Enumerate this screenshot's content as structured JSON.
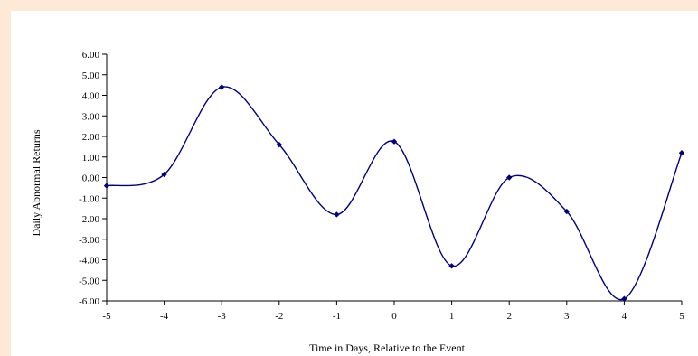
{
  "chart_data": {
    "type": "line",
    "title": "",
    "xlabel": "Time in Days, Relative to the Event",
    "ylabel": "Daily Abnormal Returns",
    "x": [
      -5,
      -4,
      -3,
      -2,
      -1,
      0,
      1,
      2,
      3,
      4,
      5
    ],
    "x_tick_labels": [
      "-5",
      "-4",
      "-3",
      "-2",
      "-1",
      "0",
      "1",
      "2",
      "3",
      "4",
      "5"
    ],
    "y_tick_labels": [
      "6.00",
      "5.00",
      "4.00",
      "3.00",
      "2.00",
      "1.00",
      "0.00",
      "-1.00",
      "-2.00",
      "-3.00",
      "-4.00",
      "-5.00",
      "-6.00"
    ],
    "xlim": [
      -5,
      5
    ],
    "ylim": [
      -6,
      6
    ],
    "grid": false,
    "legend": "none",
    "series": [
      {
        "values": [
          -0.4,
          0.15,
          4.4,
          1.6,
          -1.8,
          1.75,
          -4.3,
          0.0,
          -1.65,
          -5.9,
          1.2
        ],
        "color": "#000080",
        "marker": "diamond",
        "smooth": true
      }
    ]
  }
}
